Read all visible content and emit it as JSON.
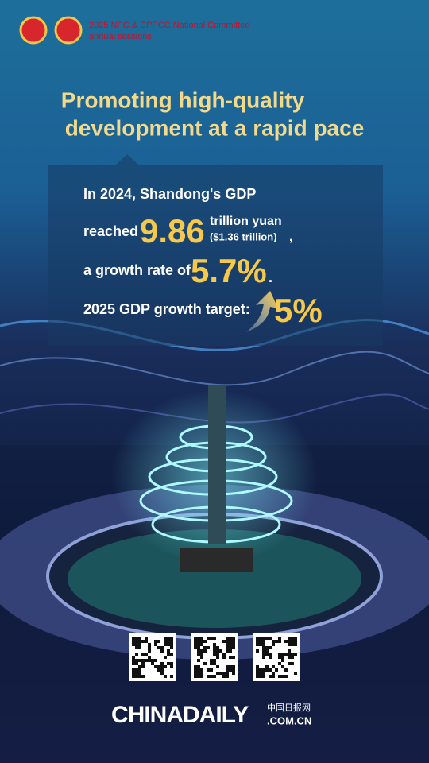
{
  "header": {
    "line1": "2025 NPC & CPPCC National Committee",
    "line2": "annual sessions"
  },
  "title": {
    "line1": "Promoting high-quality",
    "line2": "development at a rapid pace"
  },
  "content": {
    "line1": "In 2024, Shandong's GDP",
    "reached": "reached",
    "gdp": "9.86",
    "unit": "trillion yuan",
    "usd": "($1.36 trillion)",
    "comma": ",",
    "growth_label": "a growth rate of",
    "growth": "5.7%",
    "period": ".",
    "target_label": "2025 GDP growth target:",
    "target": "5%"
  },
  "footer": {
    "brand": "CHINADAILY",
    "domain": ".COM.CN",
    "chinese": "中国日报网"
  }
}
